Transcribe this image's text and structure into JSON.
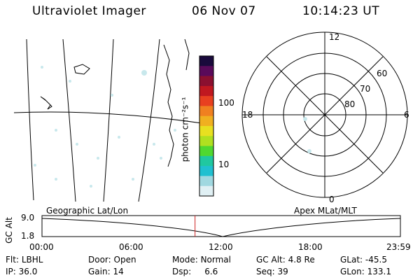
{
  "header": {
    "title": "Ultraviolet Imager",
    "date": "06 Nov 07",
    "time": "10:14:23 UT"
  },
  "colorbar": {
    "label": "photon cm⁻²s⁻¹",
    "ticks": [
      "100",
      "10"
    ],
    "colors": [
      "#1a0a3c",
      "#5a0a5a",
      "#8b1030",
      "#c01820",
      "#e84020",
      "#f08020",
      "#f0b020",
      "#e8e020",
      "#b0e020",
      "#50d830",
      "#20c8a0",
      "#20c0d0",
      "#a0d8e0",
      "#e0f0f4"
    ]
  },
  "polar": {
    "labels": {
      "top": "12",
      "bottom": "0",
      "left": "18",
      "right": "6",
      "lat60": "60",
      "lat70": "70",
      "lat80": "80"
    }
  },
  "timeline": {
    "left_label": "Geographic Lat/Lon",
    "right_label": "Apex MLat/MLT",
    "y_axis_label": "GC Alt",
    "y_top": "9.0",
    "y_bottom": "1.8",
    "x_ticks": [
      "00:00",
      "06:00",
      "12:00",
      "18:00",
      "23:59"
    ],
    "current_time_fraction": 0.427
  },
  "status": {
    "filter_label": "Flt:",
    "filter_value": "LBHL",
    "ip_label": "IP:",
    "ip_value": "36.0",
    "door_label": "Door:",
    "door_value": "Open",
    "gain_label": "Gain:",
    "gain_value": "14",
    "mode_label": "Mode:",
    "mode_value": "Normal",
    "dsp_label": "Dsp:",
    "dsp_value": "6.6",
    "gcalt_label": "GC Alt:",
    "gcalt_value": "4.8 Re",
    "seq_label": "Seq:",
    "seq_value": "39",
    "glat_label": "GLat:",
    "glat_value": "-45.5",
    "glon_label": "GLon:",
    "glon_value": "133.1"
  }
}
